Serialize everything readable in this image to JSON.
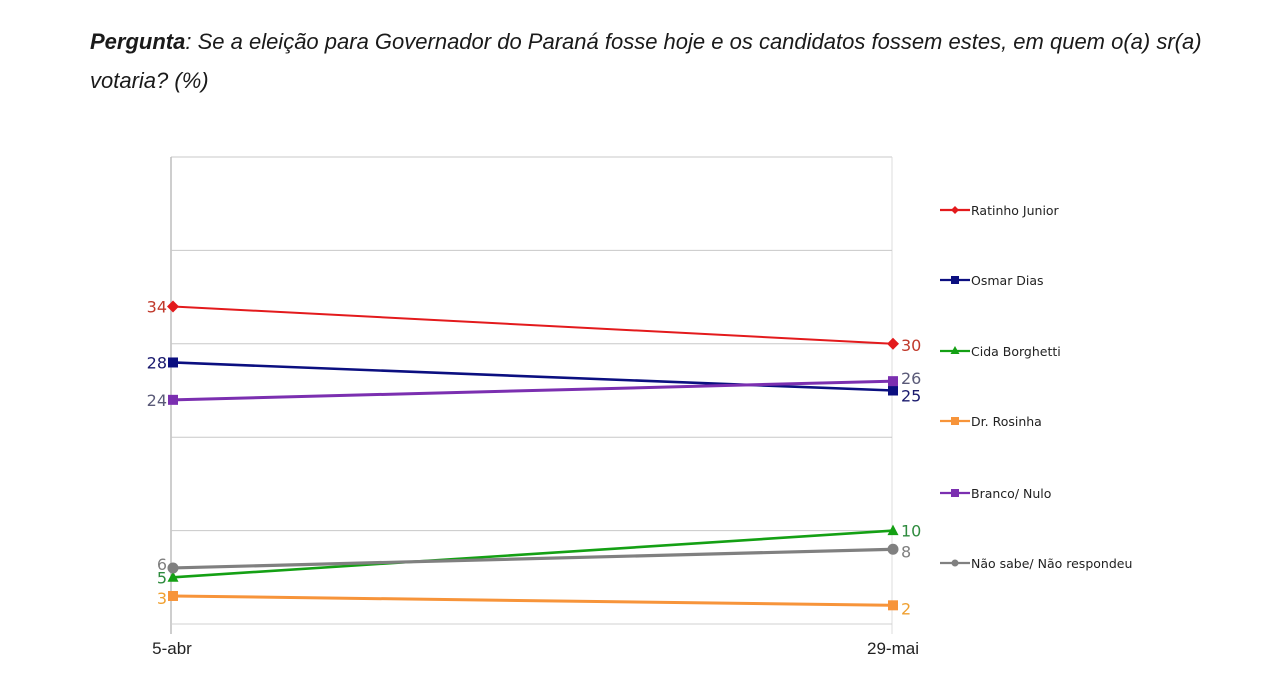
{
  "question": {
    "lead": "Pergunta",
    "text": ": Se a eleição para Governador do Paraná fosse hoje e os candidatos fossem estes, em quem o(a) sr(a) votaria?  (%)"
  },
  "chart_data": {
    "type": "line",
    "title": "Pergunta: Se a eleição para Governador do Paraná fosse hoje e os candidatos fossem estes, em quem o(a) sr(a) votaria? (%)",
    "xlabel": "",
    "ylabel": "",
    "categories": [
      "5-abr",
      "29-mai"
    ],
    "ylim": [
      0,
      50
    ],
    "y_gridlines": [
      10,
      20,
      30,
      40,
      50
    ],
    "y_tick_labels_shown": false,
    "grid": true,
    "legend_position": "right",
    "series": [
      {
        "name": "Ratinho Junior",
        "values": [
          34,
          30
        ],
        "color": "#e31a1c",
        "label_color": "#c0392b",
        "marker": "diamond"
      },
      {
        "name": "Osmar Dias",
        "values": [
          28,
          25
        ],
        "color": "#0b0f80",
        "label_color": "#1a1a6e",
        "marker": "square"
      },
      {
        "name": "Cida Borghetti",
        "values": [
          5,
          10
        ],
        "color": "#14a014",
        "label_color": "#2e8b3e",
        "marker": "triangle"
      },
      {
        "name": "Dr. Rosinha",
        "values": [
          3,
          2
        ],
        "color": "#f7943a",
        "label_color": "#f0a030",
        "marker": "square"
      },
      {
        "name": "Branco/ Nulo",
        "values": [
          24,
          26
        ],
        "color": "#7b2fb0",
        "label_color": "#5a5a78",
        "marker": "square"
      },
      {
        "name": "Não sabe/ Não respondeu",
        "values": [
          6,
          8
        ],
        "color": "#808080",
        "label_color": "#808080",
        "marker": "circle"
      }
    ]
  }
}
